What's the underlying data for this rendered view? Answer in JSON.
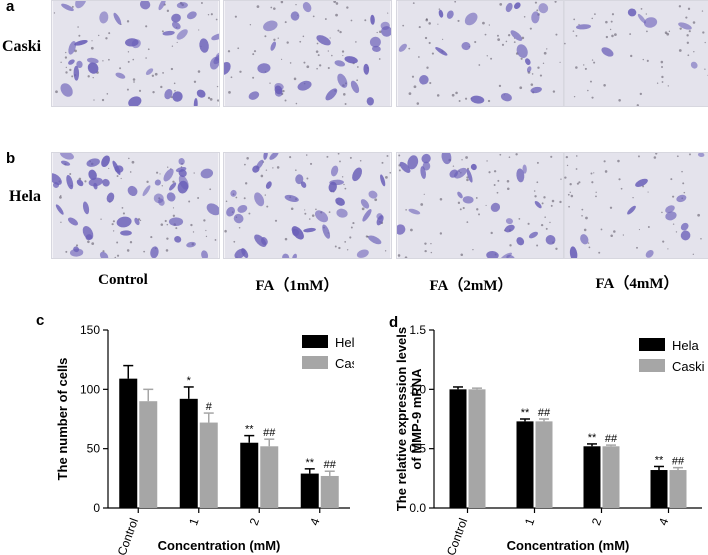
{
  "panels": {
    "a": "a",
    "b": "b",
    "c": "c",
    "d": "d"
  },
  "rows": {
    "caski": "Caski",
    "hela": "Hela"
  },
  "columns": [
    "Control",
    "FA（1mM）",
    "FA（2mM）",
    "FA（4mM）"
  ],
  "colors": {
    "hela": "#000000",
    "caski": "#a6a6a6",
    "micro_bg": "#e4e3ec",
    "cell": "#6a5fb8"
  },
  "chart_data": [
    {
      "type": "bar",
      "panel": "c",
      "categories": [
        "Control",
        "1",
        "2",
        "4"
      ],
      "series": [
        {
          "name": "Hela",
          "values": [
            109,
            92,
            55,
            29
          ],
          "errors": [
            11,
            10,
            6,
            4
          ]
        },
        {
          "name": "Caski",
          "values": [
            90,
            72,
            52,
            27
          ],
          "errors": [
            10,
            8,
            6,
            4
          ]
        }
      ],
      "annotations": {
        "Hela": [
          "",
          "*",
          "**",
          "**"
        ],
        "Caski": [
          "",
          "#",
          "##",
          "##"
        ]
      },
      "xlabel": "Concentration (mM)",
      "ylabel": "The number of cells",
      "ylim": [
        0,
        150
      ],
      "yticks": [
        0,
        50,
        100,
        150
      ],
      "legend": "top-right",
      "grid": false
    },
    {
      "type": "bar",
      "panel": "d",
      "categories": [
        "Control",
        "1",
        "2",
        "4"
      ],
      "series": [
        {
          "name": "Hela",
          "values": [
            1.0,
            0.73,
            0.52,
            0.32
          ],
          "errors": [
            0.02,
            0.02,
            0.02,
            0.03
          ]
        },
        {
          "name": "Caski",
          "values": [
            1.0,
            0.73,
            0.52,
            0.32
          ],
          "errors": [
            0.01,
            0.02,
            0.01,
            0.02
          ]
        }
      ],
      "annotations": {
        "Hela": [
          "",
          "**",
          "**",
          "**"
        ],
        "Caski": [
          "",
          "##",
          "##",
          "##"
        ]
      },
      "xlabel": "Concentration (mM)",
      "ylabel": "The relative expression levels of MMP-9 mRNA",
      "ylabel_lines": [
        "The relative expression levels",
        "of MMP-9 mRNA"
      ],
      "ylim": [
        0,
        1.5
      ],
      "yticks": [
        "0.0",
        "0.5",
        "1.0",
        "1.5"
      ],
      "legend": "top-right",
      "grid": false
    }
  ]
}
